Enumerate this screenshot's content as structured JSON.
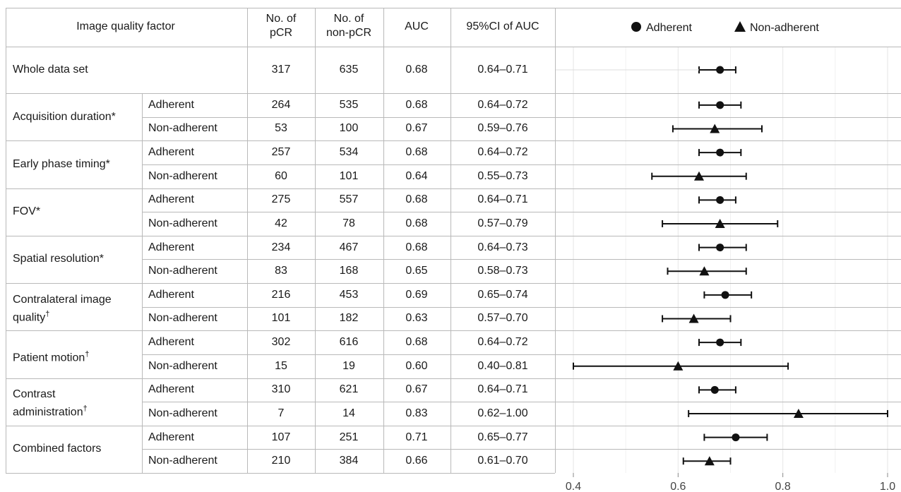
{
  "table": {
    "headers": {
      "factor": "Image quality factor",
      "pcr_line1": "No. of",
      "pcr_line2": "pCR",
      "nonpcr_line1": "No. of",
      "nonpcr_line2": "non-pCR",
      "auc": "AUC",
      "ci": "95%CI of AUC"
    },
    "whole": {
      "label": "Whole data set",
      "pcr": "317",
      "nonpcr": "635",
      "auc": "0.68",
      "ci": "0.64–0.71"
    },
    "groups": [
      {
        "label": "Acquisition duration*",
        "label_line2": "",
        "sup": "",
        "rows": [
          {
            "sub": "Adherent",
            "pcr": "264",
            "nonpcr": "535",
            "auc": "0.68",
            "ci": "0.64–0.72"
          },
          {
            "sub": "Non-adherent",
            "pcr": "53",
            "nonpcr": "100",
            "auc": "0.67",
            "ci": "0.59–0.76"
          }
        ]
      },
      {
        "label": "Early phase timing*",
        "label_line2": "",
        "sup": "",
        "rows": [
          {
            "sub": "Adherent",
            "pcr": "257",
            "nonpcr": "534",
            "auc": "0.68",
            "ci": "0.64–0.72"
          },
          {
            "sub": "Non-adherent",
            "pcr": "60",
            "nonpcr": "101",
            "auc": "0.64",
            "ci": "0.55–0.73"
          }
        ]
      },
      {
        "label": "FOV*",
        "label_line2": "",
        "sup": "",
        "rows": [
          {
            "sub": "Adherent",
            "pcr": "275",
            "nonpcr": "557",
            "auc": "0.68",
            "ci": "0.64–0.71"
          },
          {
            "sub": "Non-adherent",
            "pcr": "42",
            "nonpcr": "78",
            "auc": "0.68",
            "ci": "0.57–0.79"
          }
        ]
      },
      {
        "label": "Spatial resolution*",
        "label_line2": "",
        "sup": "",
        "rows": [
          {
            "sub": "Adherent",
            "pcr": "234",
            "nonpcr": "467",
            "auc": "0.68",
            "ci": "0.64–0.73"
          },
          {
            "sub": "Non-adherent",
            "pcr": "83",
            "nonpcr": "168",
            "auc": "0.65",
            "ci": "0.58–0.73"
          }
        ]
      },
      {
        "label": "Contralateral image",
        "label_line2": "quality",
        "sup": "†",
        "rows": [
          {
            "sub": "Adherent",
            "pcr": "216",
            "nonpcr": "453",
            "auc": "0.69",
            "ci": "0.65–0.74"
          },
          {
            "sub": "Non-adherent",
            "pcr": "101",
            "nonpcr": "182",
            "auc": "0.63",
            "ci": "0.57–0.70"
          }
        ]
      },
      {
        "label": "Patient motion",
        "label_line2": "",
        "sup": "†",
        "rows": [
          {
            "sub": "Adherent",
            "pcr": "302",
            "nonpcr": "616",
            "auc": "0.68",
            "ci": "0.64–0.72"
          },
          {
            "sub": "Non-adherent",
            "pcr": "15",
            "nonpcr": "19",
            "auc": "0.60",
            "ci": "0.40–0.81"
          }
        ]
      },
      {
        "label": "Contrast",
        "label_line2": "administration",
        "sup": "†",
        "rows": [
          {
            "sub": "Adherent",
            "pcr": "310",
            "nonpcr": "621",
            "auc": "0.67",
            "ci": "0.64–0.71"
          },
          {
            "sub": "Non-adherent",
            "pcr": "7",
            "nonpcr": "14",
            "auc": "0.83",
            "ci": "0.62–1.00"
          }
        ]
      },
      {
        "label": "Combined factors",
        "label_line2": "",
        "sup": "",
        "rows": [
          {
            "sub": "Adherent",
            "pcr": "107",
            "nonpcr": "251",
            "auc": "0.71",
            "ci": "0.65–0.77"
          },
          {
            "sub": "Non-adherent",
            "pcr": "210",
            "nonpcr": "384",
            "auc": "0.66",
            "ci": "0.61–0.70"
          }
        ]
      }
    ]
  },
  "chart_data": {
    "type": "scatter",
    "title": "",
    "xlabel": "",
    "ylabel": "",
    "xlim": [
      0.4,
      1.0
    ],
    "x_ticks": [
      "0.4",
      "0.6",
      "0.8",
      "1.0"
    ],
    "grid": true,
    "legend_position": "top",
    "legend": [
      {
        "name": "Adherent",
        "marker": "circle"
      },
      {
        "name": "Non-adherent",
        "marker": "triangle"
      }
    ],
    "rows": [
      "Whole data set",
      "Acquisition duration* / Adherent",
      "Acquisition duration* / Non-adherent",
      "Early phase timing* / Adherent",
      "Early phase timing* / Non-adherent",
      "FOV* / Adherent",
      "FOV* / Non-adherent",
      "Spatial resolution* / Adherent",
      "Spatial resolution* / Non-adherent",
      "Contralateral image quality† / Adherent",
      "Contralateral image quality† / Non-adherent",
      "Patient motion† / Adherent",
      "Patient motion† / Non-adherent",
      "Contrast administration† / Adherent",
      "Contrast administration† / Non-adherent",
      "Combined factors / Adherent",
      "Combined factors / Non-adherent"
    ],
    "series": [
      {
        "name": "Adherent",
        "marker": "circle",
        "row_index": [
          0,
          1,
          3,
          5,
          7,
          9,
          11,
          13,
          15
        ],
        "values": [
          0.68,
          0.68,
          0.68,
          0.68,
          0.68,
          0.69,
          0.68,
          0.67,
          0.71
        ],
        "ci_low": [
          0.64,
          0.64,
          0.64,
          0.64,
          0.64,
          0.65,
          0.64,
          0.64,
          0.65
        ],
        "ci_high": [
          0.71,
          0.72,
          0.72,
          0.71,
          0.73,
          0.74,
          0.72,
          0.71,
          0.77
        ]
      },
      {
        "name": "Non-adherent",
        "marker": "triangle",
        "row_index": [
          2,
          4,
          6,
          8,
          10,
          12,
          14,
          16
        ],
        "values": [
          0.67,
          0.64,
          0.68,
          0.65,
          0.63,
          0.6,
          0.83,
          0.66
        ],
        "ci_low": [
          0.59,
          0.55,
          0.57,
          0.58,
          0.57,
          0.4,
          0.62,
          0.61
        ],
        "ci_high": [
          0.76,
          0.73,
          0.79,
          0.73,
          0.7,
          0.81,
          1.0,
          0.7
        ]
      }
    ]
  }
}
